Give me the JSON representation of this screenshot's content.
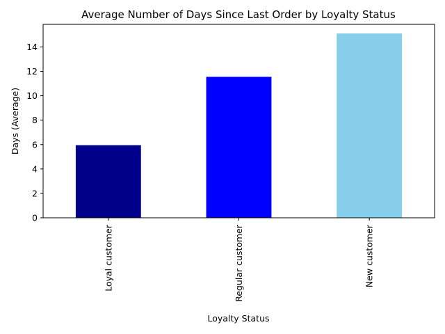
{
  "chart_data": {
    "type": "bar",
    "title": "Average Number of Days Since Last Order by Loyalty Status",
    "xlabel": "Loyalty Status",
    "ylabel": "Days (Average)",
    "categories": [
      "Loyal customer",
      "Regular customer",
      "New customer"
    ],
    "values": [
      5.95,
      11.55,
      15.1
    ],
    "colors": [
      "#00008b",
      "#0000ff",
      "#87ceeb"
    ],
    "ylim": [
      0,
      15.85
    ],
    "yticks": [
      0,
      2,
      4,
      6,
      8,
      10,
      12,
      14
    ],
    "grid": false,
    "legend": "none"
  }
}
